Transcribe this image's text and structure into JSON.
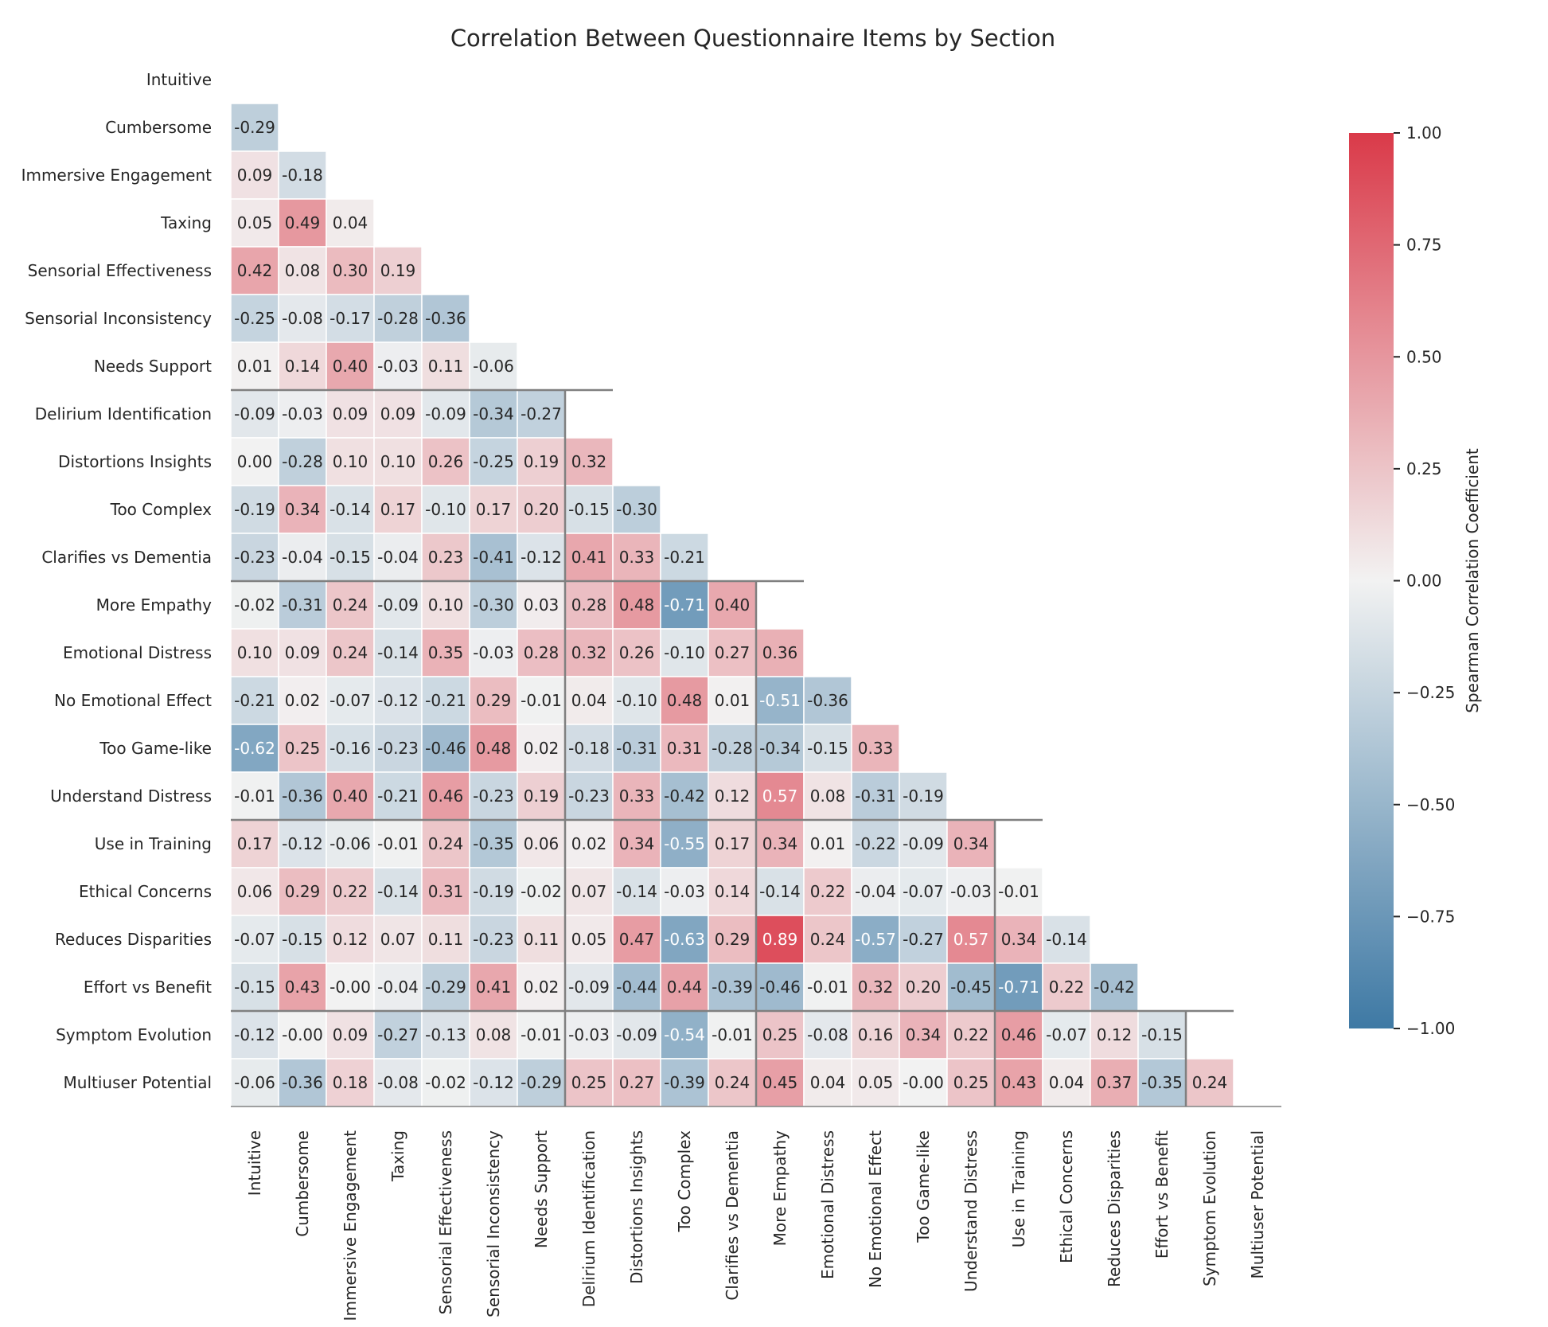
{
  "chart_data": {
    "type": "heatmap",
    "title": "Correlation Between Questionnaire Items by Section",
    "labels": [
      "Intuitive",
      "Cumbersome",
      "Immersive Engagement",
      "Taxing",
      "Sensorial Effectiveness",
      "Sensorial Inconsistency",
      "Needs Support",
      "Delirium Identification",
      "Distortions Insights",
      "Too Complex",
      "Clarifies vs Dementia",
      "More Empathy",
      "Emotional Distress",
      "No Emotional Effect",
      "Too Game-like",
      "Understand Distress",
      "Use in Training",
      "Ethical Concerns",
      "Reduces Disparities",
      "Effort vs Benefit",
      "Symptom Evolution",
      "Multiuser Potential"
    ],
    "lower_triangle_values": [
      [],
      [
        "-0.29"
      ],
      [
        "0.09",
        "-0.18"
      ],
      [
        "0.05",
        "0.49",
        "0.04"
      ],
      [
        "0.42",
        "0.08",
        "0.30",
        "0.19"
      ],
      [
        "-0.25",
        "-0.08",
        "-0.17",
        "-0.28",
        "-0.36"
      ],
      [
        "0.01",
        "0.14",
        "0.40",
        "-0.03",
        "0.11",
        "-0.06"
      ],
      [
        "-0.09",
        "-0.03",
        "0.09",
        "0.09",
        "-0.09",
        "-0.34",
        "-0.27"
      ],
      [
        "0.00",
        "-0.28",
        "0.10",
        "0.10",
        "0.26",
        "-0.25",
        "0.19",
        "0.32"
      ],
      [
        "-0.19",
        "0.34",
        "-0.14",
        "0.17",
        "-0.10",
        "0.17",
        "0.20",
        "-0.15",
        "-0.30"
      ],
      [
        "-0.23",
        "-0.04",
        "-0.15",
        "-0.04",
        "0.23",
        "-0.41",
        "-0.12",
        "0.41",
        "0.33",
        "-0.21"
      ],
      [
        "-0.02",
        "-0.31",
        "0.24",
        "-0.09",
        "0.10",
        "-0.30",
        "0.03",
        "0.28",
        "0.48",
        "-0.71",
        "0.40"
      ],
      [
        "0.10",
        "0.09",
        "0.24",
        "-0.14",
        "0.35",
        "-0.03",
        "0.28",
        "0.32",
        "0.26",
        "-0.10",
        "0.27",
        "0.36"
      ],
      [
        "-0.21",
        "0.02",
        "-0.07",
        "-0.12",
        "-0.21",
        "0.29",
        "-0.01",
        "0.04",
        "-0.10",
        "0.48",
        "0.01",
        "-0.51",
        "-0.36"
      ],
      [
        "-0.62",
        "0.25",
        "-0.16",
        "-0.23",
        "-0.46",
        "0.48",
        "0.02",
        "-0.18",
        "-0.31",
        "0.31",
        "-0.28",
        "-0.34",
        "-0.15",
        "0.33"
      ],
      [
        "-0.01",
        "-0.36",
        "0.40",
        "-0.21",
        "0.46",
        "-0.23",
        "0.19",
        "-0.23",
        "0.33",
        "-0.42",
        "0.12",
        "0.57",
        "0.08",
        "-0.31",
        "-0.19"
      ],
      [
        "0.17",
        "-0.12",
        "-0.06",
        "-0.01",
        "0.24",
        "-0.35",
        "0.06",
        "0.02",
        "0.34",
        "-0.55",
        "0.17",
        "0.34",
        "0.01",
        "-0.22",
        "-0.09",
        "0.34"
      ],
      [
        "0.06",
        "0.29",
        "0.22",
        "-0.14",
        "0.31",
        "-0.19",
        "-0.02",
        "0.07",
        "-0.14",
        "-0.03",
        "0.14",
        "-0.14",
        "0.22",
        "-0.04",
        "-0.07",
        "-0.03",
        "-0.01"
      ],
      [
        "-0.07",
        "-0.15",
        "0.12",
        "0.07",
        "0.11",
        "-0.23",
        "0.11",
        "0.05",
        "0.47",
        "-0.63",
        "0.29",
        "0.89",
        "0.24",
        "-0.57",
        "-0.27",
        "0.57",
        "0.34",
        "-0.14"
      ],
      [
        "-0.15",
        "0.43",
        "-0.00",
        "-0.04",
        "-0.29",
        "0.41",
        "0.02",
        "-0.09",
        "-0.44",
        "0.44",
        "-0.39",
        "-0.46",
        "-0.01",
        "0.32",
        "0.20",
        "-0.45",
        "-0.71",
        "0.22",
        "-0.42"
      ],
      [
        "-0.12",
        "-0.00",
        "0.09",
        "-0.27",
        "-0.13",
        "0.08",
        "-0.01",
        "-0.03",
        "-0.09",
        "-0.54",
        "-0.01",
        "0.25",
        "-0.08",
        "0.16",
        "0.34",
        "0.22",
        "0.46",
        "-0.07",
        "0.12",
        "-0.15"
      ],
      [
        "-0.06",
        "-0.36",
        "0.18",
        "-0.08",
        "-0.02",
        "-0.12",
        "-0.29",
        "0.25",
        "0.27",
        "-0.39",
        "0.24",
        "0.45",
        "0.04",
        "0.05",
        "-0.00",
        "0.25",
        "0.43",
        "0.04",
        "0.37",
        "-0.35",
        "0.24"
      ]
    ],
    "section_boundaries": [
      7,
      11,
      16,
      20
    ],
    "vmin": -1.0,
    "vmax": 1.0,
    "colorbar": {
      "label": "Spearman Correlation Coefficient",
      "ticks": [
        "1.00",
        "0.75",
        "0.50",
        "0.25",
        "0.00",
        "−0.25",
        "−0.50",
        "−0.75",
        "−1.00"
      ],
      "tick_values": [
        1.0,
        0.75,
        0.5,
        0.25,
        0.0,
        -0.25,
        -0.5,
        -0.75,
        -1.0
      ]
    },
    "colormap": {
      "negative": "#3e79a4",
      "neutral": "#f2f2f2",
      "positive": "#da3a49"
    },
    "grid": false,
    "legend": "colorbar right"
  }
}
